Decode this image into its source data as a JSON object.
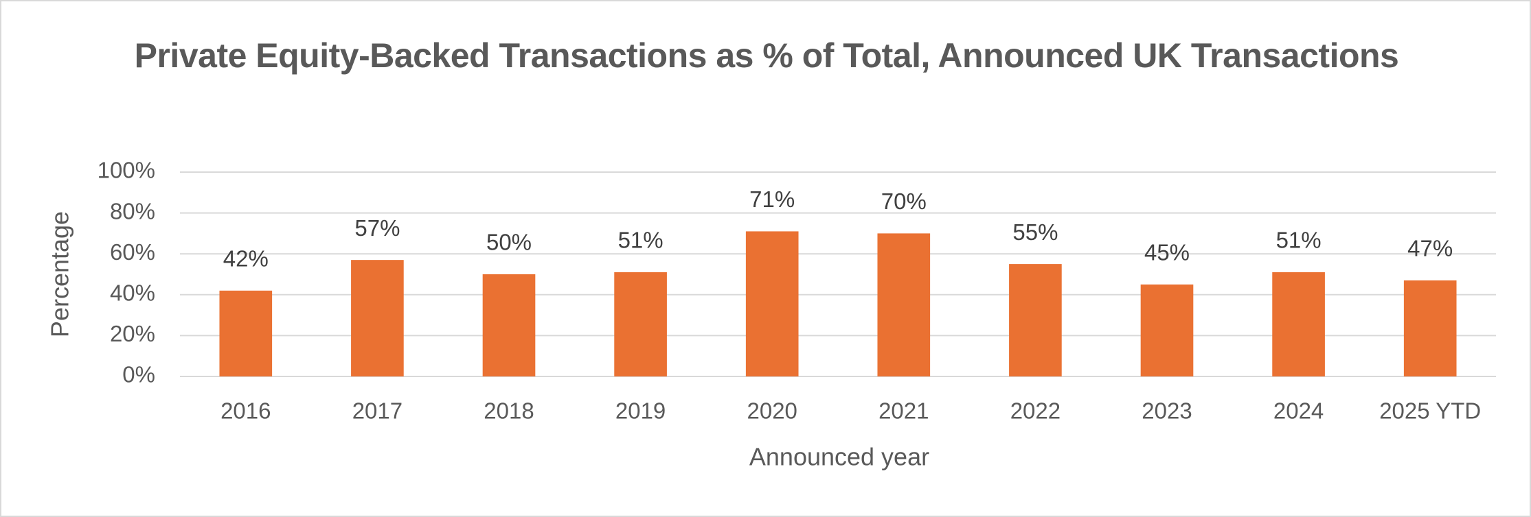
{
  "chart_data": {
    "type": "bar",
    "title": "Private Equity-Backed Transactions as % of Total, Announced UK Transactions",
    "x_label": "Announced year",
    "y_label": "Percentage",
    "categories": [
      "2016",
      "2017",
      "2018",
      "2019",
      "2020",
      "2021",
      "2022",
      "2023",
      "2024",
      "2025 YTD"
    ],
    "values": [
      42,
      57,
      50,
      51,
      71,
      70,
      55,
      45,
      51,
      47
    ],
    "value_labels": [
      "42%",
      "57%",
      "50%",
      "51%",
      "71%",
      "70%",
      "55%",
      "45%",
      "51%",
      "47%"
    ],
    "color": "#ea7132",
    "ylim": [
      0,
      100
    ],
    "yticks": [
      {
        "value": 0,
        "label": "0%"
      },
      {
        "value": 20,
        "label": "20%"
      },
      {
        "value": 40,
        "label": "40%"
      },
      {
        "value": 60,
        "label": "60%"
      },
      {
        "value": 80,
        "label": "80%"
      },
      {
        "value": 100,
        "label": "100%"
      }
    ],
    "grid": true
  }
}
